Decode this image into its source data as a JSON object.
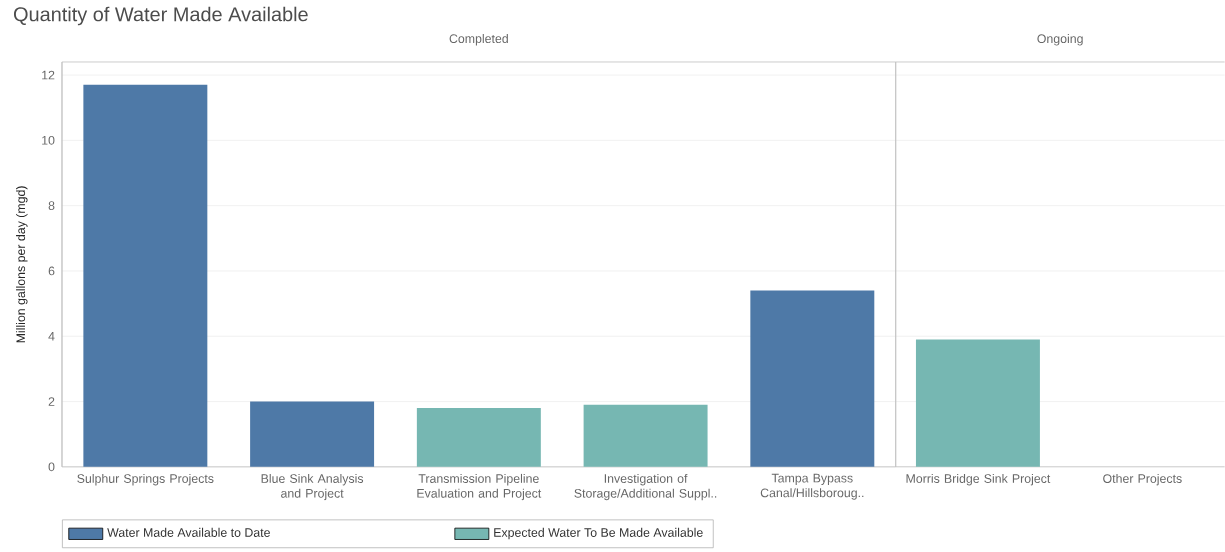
{
  "chart_data": [
    {
      "type": "bar",
      "title": "Quantity of Water Made Available",
      "subtitle": "Completed",
      "ylabel": "Million gallons per day (mgd)",
      "categories": [
        "Sulphur Springs  Projects",
        "Blue Sink Analysis and Project",
        "Transmission Pipeline Evaluation and Project",
        "Investigation of Storage/Additional Suppl..",
        "Tampa Bypass Canal/Hillsboroug.."
      ],
      "series": [
        {
          "name": "Water Made Available to Date",
          "color": "#4e79a7",
          "values": [
            11.7,
            2.0,
            null,
            null,
            5.4
          ]
        },
        {
          "name": "Expected  Water To Be Made Available",
          "color": "#76b7b2",
          "values": [
            null,
            null,
            1.8,
            1.9,
            null
          ]
        }
      ],
      "ylim": [
        0,
        12.4
      ],
      "yticks": [
        0,
        2,
        4,
        6,
        8,
        10,
        12
      ],
      "grid": "y",
      "legend": "bottom"
    },
    {
      "type": "bar",
      "title": "Ongoing",
      "categories": [
        "Morris Bridge Sink Project",
        "Other Projects"
      ],
      "series": [
        {
          "color": "#76b7b2",
          "values": [
            3.9,
            null
          ]
        }
      ],
      "ylim": [
        0,
        12.4
      ],
      "yticks": [
        0,
        2,
        4,
        6,
        8,
        10,
        12
      ],
      "grid": "y",
      "tick_labels": "x"
    }
  ]
}
